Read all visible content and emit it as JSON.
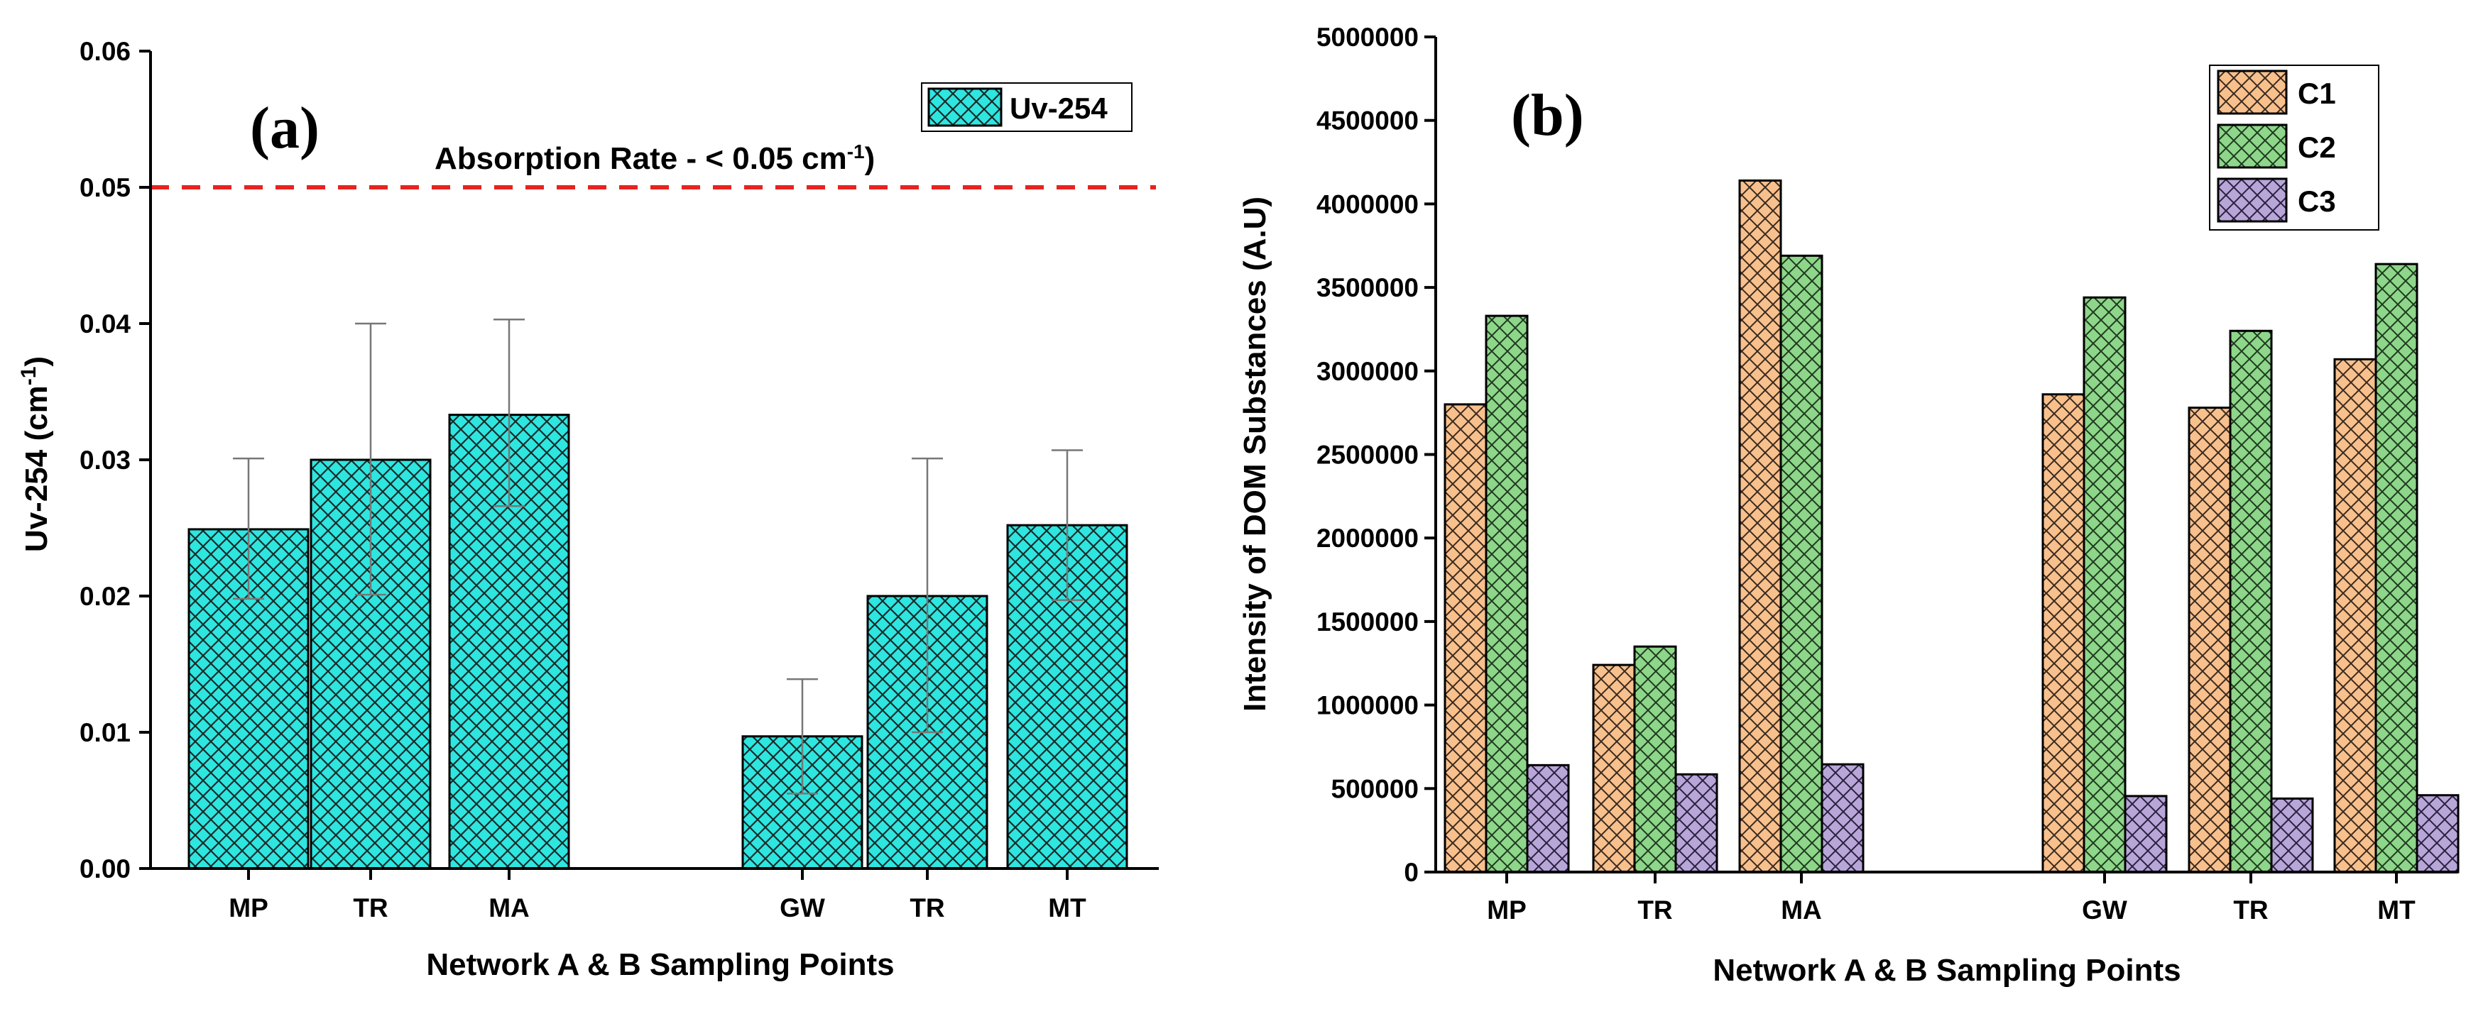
{
  "chart_data": [
    {
      "type": "bar",
      "panel_label": "(a)",
      "categories": [
        "MP",
        "TR",
        "MA",
        "GW",
        "TR",
        "MT"
      ],
      "series": [
        {
          "name": "Uv-254",
          "color": "#2EE6E0",
          "values": [
            0.0249,
            0.03,
            0.0333,
            0.0097,
            0.02,
            0.0252
          ],
          "error_upper": [
            0.0301,
            0.04,
            0.0403,
            0.0139,
            0.0301,
            0.0307
          ],
          "error_lower": [
            0.0198,
            0.0201,
            0.0266,
            0.0055,
            0.01,
            0.0197
          ]
        }
      ],
      "xlabel": "Network A & B Sampling Points",
      "ylabel_main": "Uv-254 (cm",
      "ylabel_sup": "-1",
      "ylabel_end": ")",
      "ylim": [
        0,
        0.06
      ],
      "yticks": [
        "0.00",
        "0.01",
        "0.02",
        "0.03",
        "0.04",
        "0.05",
        "0.06"
      ],
      "threshold": {
        "value": 0.05,
        "color": "#E8231F",
        "label_main": "Absorption Rate - < 0.05 cm",
        "label_sup": "-1",
        "label_end": ")"
      },
      "legend_position": "top-right"
    },
    {
      "type": "bar",
      "panel_label": "(b)",
      "categories": [
        "MP",
        "TR",
        "MA",
        "GW",
        "TR",
        "MT"
      ],
      "series": [
        {
          "name": "C1",
          "color": "#F8C08C",
          "values": [
            2800000,
            1240000,
            4140000,
            2860000,
            2780000,
            3070000
          ]
        },
        {
          "name": "C2",
          "color": "#8ED68A",
          "values": [
            3330000,
            1350000,
            3690000,
            3440000,
            3240000,
            3640000
          ]
        },
        {
          "name": "C3",
          "color": "#B8A6D8",
          "values": [
            640000,
            585000,
            645000,
            455000,
            440000,
            460000
          ]
        }
      ],
      "xlabel": "Network A & B Sampling Points",
      "ylabel": "Intensity of DOM Substances (A.U)",
      "ylim": [
        0,
        5000000
      ],
      "yticks": [
        "0",
        "500000",
        "1000000",
        "1500000",
        "2000000",
        "2500000",
        "3000000",
        "3500000",
        "4000000",
        "4500000",
        "5000000"
      ],
      "legend_position": "top-right"
    }
  ]
}
